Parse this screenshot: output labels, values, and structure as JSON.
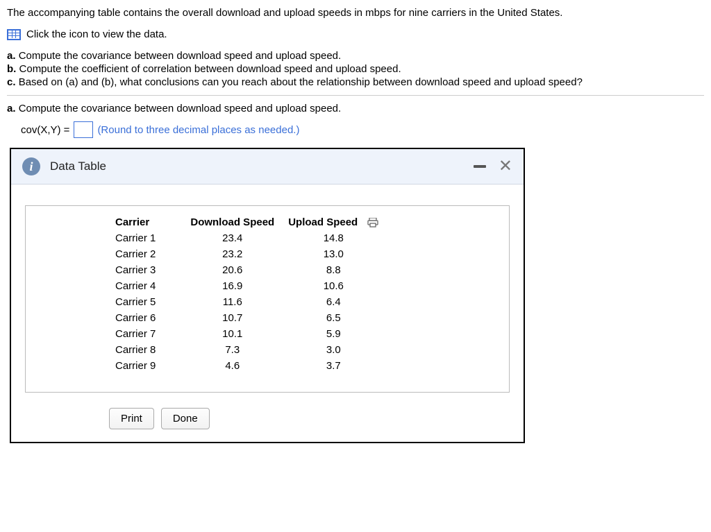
{
  "intro": "The accompanying table contains the overall download and upload speeds in mbps for nine carriers in the United States.",
  "view_data_label": "Click the icon to view the data.",
  "questions": {
    "a": {
      "letter": "a.",
      "text": "Compute the covariance between download speed and upload speed."
    },
    "b": {
      "letter": "b.",
      "text": "Compute the coefficient of correlation between download speed and upload speed."
    },
    "c": {
      "letter": "c.",
      "text": "Based on (a) and (b), what conclusions can you reach about the relationship between download speed and upload speed?"
    }
  },
  "current_question": {
    "letter": "a.",
    "text": "Compute the covariance between download speed and upload speed."
  },
  "answer": {
    "label": "cov(X,Y) =",
    "value": "",
    "hint": "(Round to three decimal places as needed.)"
  },
  "dialog": {
    "title": "Data Table",
    "print_label": "Print",
    "done_label": "Done"
  },
  "table": {
    "columns": [
      "Carrier",
      "Download Speed",
      "Upload Speed"
    ],
    "rows": [
      [
        "Carrier 1",
        "23.4",
        "14.8"
      ],
      [
        "Carrier 2",
        "23.2",
        "13.0"
      ],
      [
        "Carrier 3",
        "20.6",
        "8.8"
      ],
      [
        "Carrier 4",
        "16.9",
        "10.6"
      ],
      [
        "Carrier 5",
        "11.6",
        "6.4"
      ],
      [
        "Carrier 6",
        "10.7",
        "6.5"
      ],
      [
        "Carrier 7",
        "10.1",
        "5.9"
      ],
      [
        "Carrier 8",
        "7.3",
        "3.0"
      ],
      [
        "Carrier 9",
        "4.6",
        "3.7"
      ]
    ]
  }
}
